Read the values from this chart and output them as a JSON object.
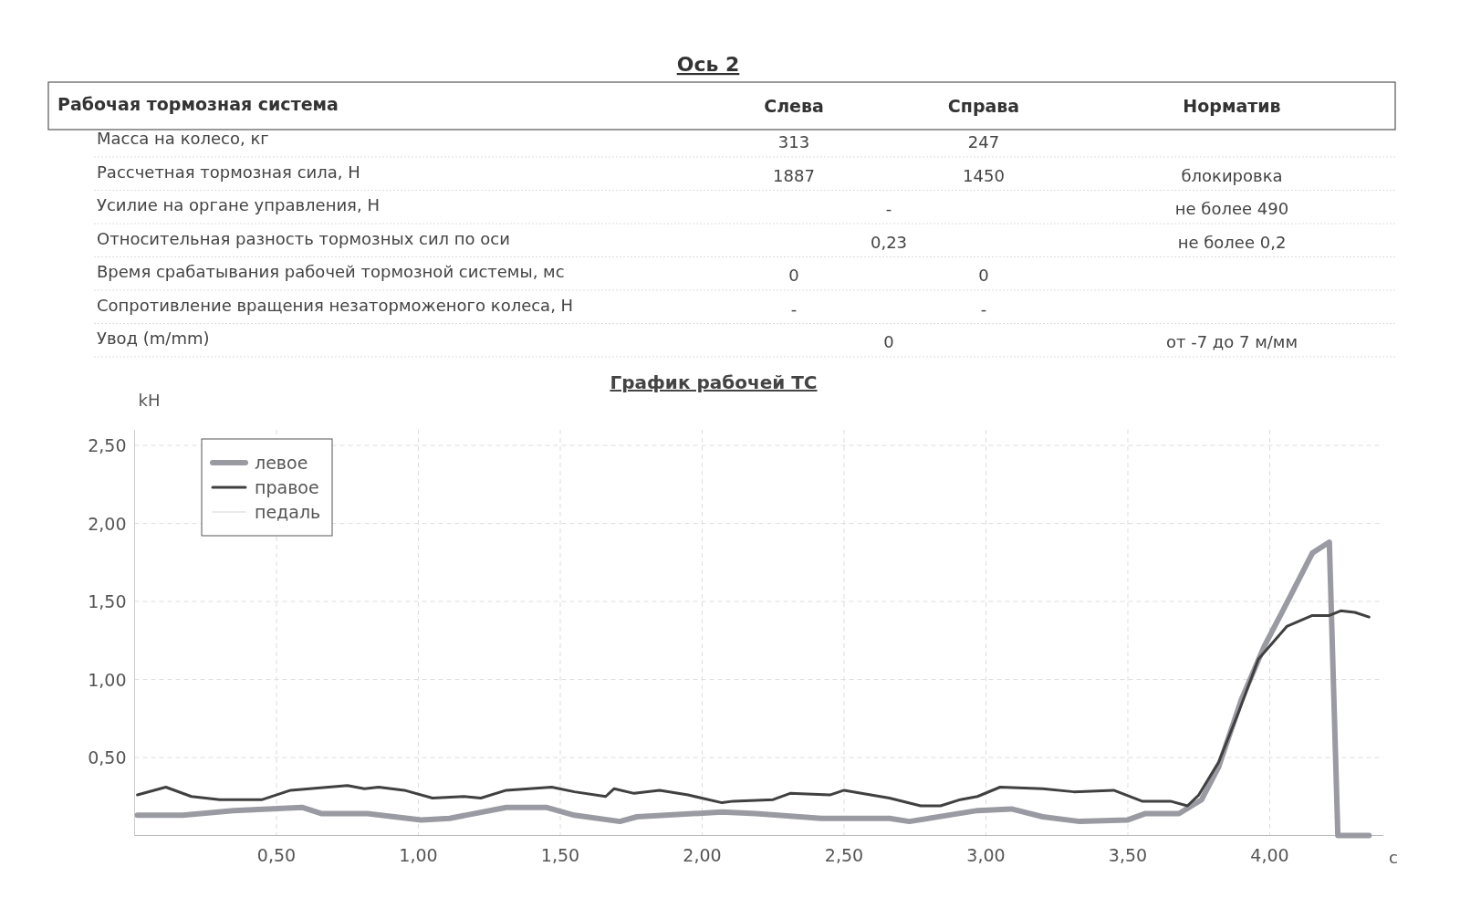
{
  "chart_data": [
    {
      "type": "other",
      "title": "Ось 2",
      "subtitle": "Рабочая тормозная система",
      "categories": [
        "Слева",
        "Справа",
        "Норматив"
      ],
      "y_categories": [
        "Масса на колесо, кг",
        "Рассчетная тормозная сила, Н",
        "Усилие на органе управления, Н",
        "Относительная разность тормозных сил по оси",
        "Время срабатывания рабочей тормозной системы, мс",
        "Сопротивление вращения незаторможеного колеса, Н",
        "Увод (m/mm)"
      ],
      "cell_labels": [
        [
          "313",
          "247",
          null
        ],
        [
          "1887",
          "1450",
          "блокировка"
        ],
        [
          "-",
          null,
          "не более 490"
        ],
        [
          "0,23",
          null,
          "не более 0,2"
        ],
        [
          "0",
          "0",
          null
        ],
        [
          "-",
          "-",
          null
        ],
        [
          "0",
          null,
          "от -7 до 7 м/мм"
        ]
      ]
    },
    {
      "type": "line",
      "title": "График рабочей ТС",
      "ylabel": "kH",
      "xlabel": "с",
      "xlim": [
        0,
        4.4
      ],
      "ylim": [
        0,
        2.6
      ],
      "xticks": [
        {
          "value": 0.5,
          "label": "0,50"
        },
        {
          "value": 1,
          "label": "1,00"
        },
        {
          "value": 1.5,
          "label": "1,50"
        },
        {
          "value": 2,
          "label": "2,00"
        },
        {
          "value": 2.5,
          "label": "2,50"
        },
        {
          "value": 3,
          "label": "3,00"
        },
        {
          "value": 3.5,
          "label": "3,50"
        },
        {
          "value": 4,
          "label": "4,00"
        }
      ],
      "yticks": [
        {
          "value": 0.5,
          "label": "0,50"
        },
        {
          "value": 1,
          "label": "1,00"
        },
        {
          "value": 1.5,
          "label": "1,50"
        },
        {
          "value": 2,
          "label": "2,00"
        },
        {
          "value": 2.5,
          "label": "2,50"
        }
      ],
      "grid": true,
      "legend": "top left",
      "marker": "none",
      "line_style": "solid",
      "series": [
        {
          "name": "левое",
          "color": "#9a9aa2",
          "x": [
            0.01,
            0.17,
            0.35,
            0.59,
            0.66,
            0.82,
            1.01,
            1.11,
            1.31,
            1.45,
            1.55,
            1.71,
            1.77,
            2.07,
            2.19,
            2.42,
            2.66,
            2.73,
            2.97,
            3.09,
            3.2,
            3.33,
            3.5,
            3.56,
            3.68,
            3.76,
            3.82,
            3.9,
            3.98,
            4.06,
            4.15,
            4.21,
            4.24,
            4.35
          ],
          "values": [
            0.13,
            0.13,
            0.16,
            0.18,
            0.14,
            0.14,
            0.1,
            0.11,
            0.18,
            0.18,
            0.13,
            0.09,
            0.12,
            0.15,
            0.14,
            0.11,
            0.11,
            0.09,
            0.16,
            0.17,
            0.12,
            0.09,
            0.1,
            0.14,
            0.14,
            0.23,
            0.44,
            0.87,
            1.21,
            1.49,
            1.81,
            1.88,
            0,
            0
          ]
        },
        {
          "name": "правое",
          "color": "#404040",
          "x": [
            0.01,
            0.11,
            0.2,
            0.3,
            0.45,
            0.55,
            0.75,
            0.81,
            0.86,
            0.95,
            1.05,
            1.16,
            1.22,
            1.31,
            1.47,
            1.55,
            1.66,
            1.69,
            1.76,
            1.85,
            1.95,
            2.07,
            2.11,
            2.25,
            2.31,
            2.45,
            2.5,
            2.66,
            2.77,
            2.84,
            2.91,
            2.97,
            3.05,
            3.2,
            3.31,
            3.45,
            3.55,
            3.65,
            3.71,
            3.75,
            3.82,
            3.89,
            3.96,
            4.06,
            4.15,
            4.21,
            4.25,
            4.3,
            4.35
          ],
          "values": [
            0.26,
            0.31,
            0.25,
            0.23,
            0.23,
            0.29,
            0.32,
            0.3,
            0.31,
            0.29,
            0.24,
            0.25,
            0.24,
            0.29,
            0.31,
            0.28,
            0.25,
            0.3,
            0.27,
            0.29,
            0.26,
            0.21,
            0.22,
            0.23,
            0.27,
            0.26,
            0.29,
            0.24,
            0.19,
            0.19,
            0.23,
            0.25,
            0.31,
            0.3,
            0.28,
            0.29,
            0.22,
            0.22,
            0.19,
            0.26,
            0.47,
            0.79,
            1.13,
            1.34,
            1.41,
            1.41,
            1.44,
            1.43,
            1.4
          ]
        },
        {
          "name": "педаль",
          "color": "#e2e2e2"
        }
      ]
    }
  ]
}
